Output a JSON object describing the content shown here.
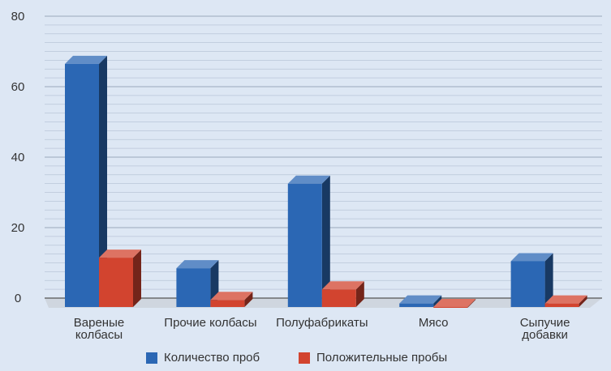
{
  "chart_data": {
    "type": "bar",
    "title": "",
    "xlabel": "",
    "ylabel": "",
    "ylim": [
      0,
      80
    ],
    "y_ticks": [
      0,
      20,
      40,
      60,
      80
    ],
    "grid": true,
    "legend_position": "bottom",
    "style": "3d",
    "categories": [
      [
        "Вареные",
        "колбасы"
      ],
      [
        "Прочие колбасы"
      ],
      [
        "Полуфабрикаты"
      ],
      [
        "Мясо"
      ],
      [
        "Сыпучие",
        "добавки"
      ]
    ],
    "series": [
      {
        "name": "Количество проб",
        "color": "#2b67b4",
        "values": [
          69,
          11,
          35,
          1,
          13
        ]
      },
      {
        "name": "Положительные пробы",
        "color": "#d2442f",
        "values": [
          14,
          2,
          5,
          0,
          1
        ]
      }
    ]
  }
}
